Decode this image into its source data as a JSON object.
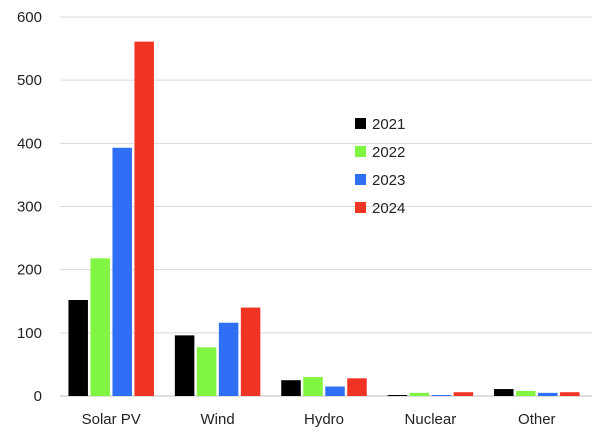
{
  "chart_data": {
    "type": "bar",
    "title": "",
    "xlabel": "",
    "ylabel": "",
    "categories": [
      "Solar PV",
      "Wind",
      "Hydro",
      "Nuclear",
      "Other"
    ],
    "ylim": [
      0,
      600
    ],
    "yticks": [
      "0",
      "100",
      "200",
      "300",
      "400",
      "500",
      "600"
    ],
    "grid": true,
    "legend_position": "center-right",
    "series": [
      {
        "name": "2021",
        "color": "#000000",
        "values": [
          152,
          96,
          25,
          1,
          11
        ]
      },
      {
        "name": "2022",
        "color": "#80f542",
        "values": [
          218,
          77,
          30,
          5,
          8
        ]
      },
      {
        "name": "2023",
        "color": "#2f6ff5",
        "values": [
          393,
          116,
          15,
          1,
          5
        ]
      },
      {
        "name": "2024",
        "color": "#ef3424",
        "values": [
          561,
          140,
          28,
          6,
          6
        ]
      }
    ]
  }
}
